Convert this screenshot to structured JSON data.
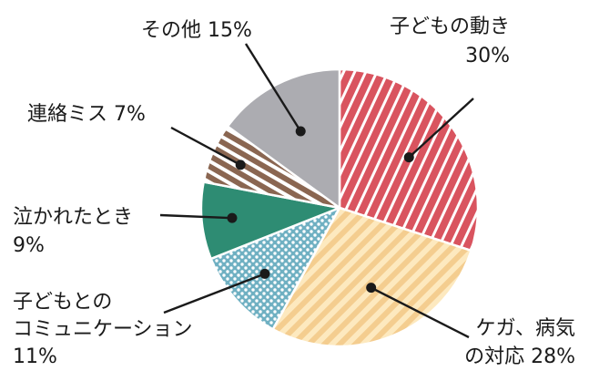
{
  "chart_data": {
    "type": "pie",
    "title": "",
    "slices": [
      {
        "label_lines": [
          "子どもの動き",
          "30%"
        ],
        "category": "子どもの動き",
        "percent": 30,
        "color": "#d9545f",
        "pattern": "diag-white"
      },
      {
        "label_lines": [
          "ケガ、病気",
          "の対応 28%"
        ],
        "category": "ケガ、病気の対応",
        "percent": 28,
        "color": "#fde9bf",
        "pattern": "diag-gold"
      },
      {
        "label_lines": [
          "子どもとの",
          "コミュニケーション",
          "11%"
        ],
        "category": "子どもとのコミュニケーション",
        "percent": 11,
        "color": "#6fb0c2",
        "pattern": "dots-white"
      },
      {
        "label_lines": [
          "泣かれたとき",
          "9%"
        ],
        "category": "泣かれたとき",
        "percent": 9,
        "color": "#2e8c73",
        "pattern": "solid"
      },
      {
        "label_lines": [
          "連絡ミス 7%"
        ],
        "category": "連絡ミス",
        "percent": 7,
        "color": "#8a6651",
        "pattern": "diag-white-steep"
      },
      {
        "label_lines": [
          "その他 15%"
        ],
        "category": "その他",
        "percent": 15,
        "color": "#acacb1",
        "pattern": "solid"
      }
    ],
    "start_angle": "12 o'clock",
    "direction": "clockwise",
    "legend": "none (callout labels)"
  }
}
